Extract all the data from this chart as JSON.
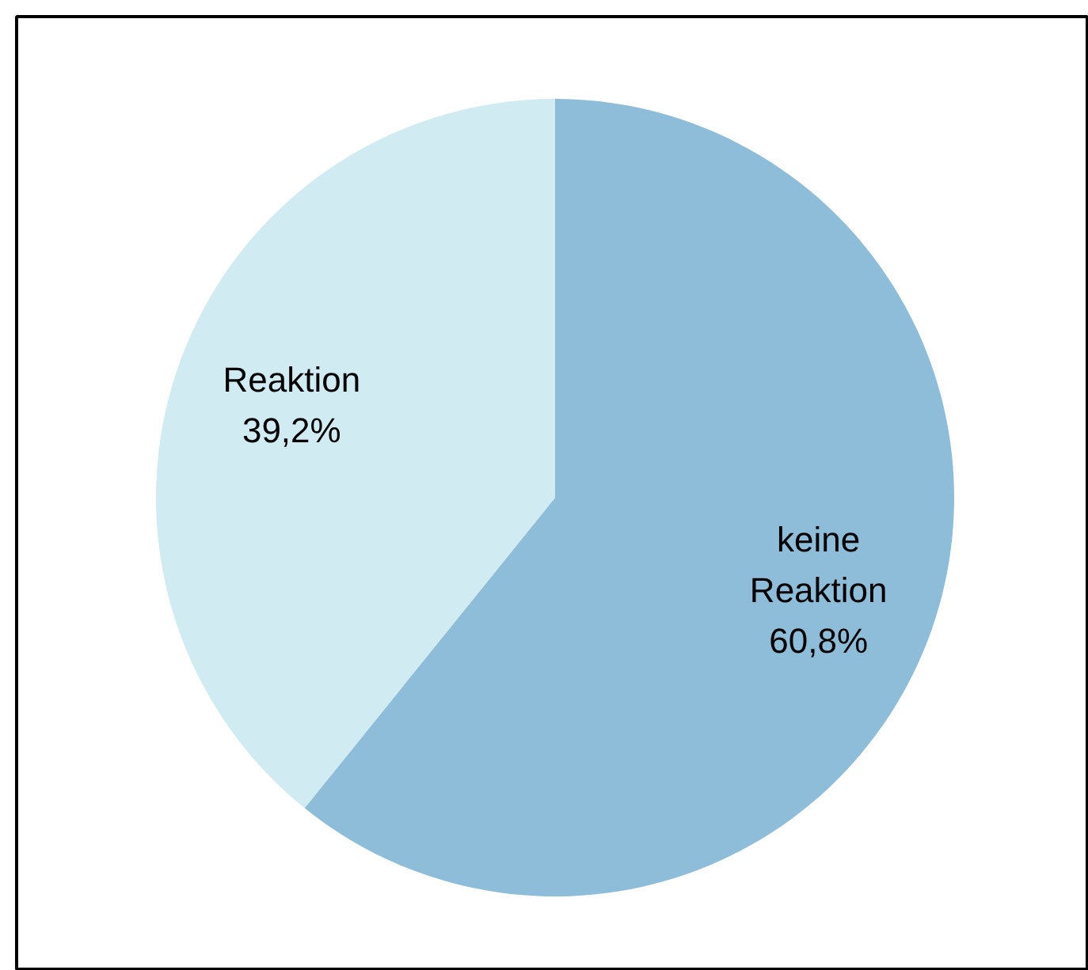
{
  "chart_data": {
    "type": "pie",
    "categories": [
      "keine Reaktion",
      "Reaktion"
    ],
    "values": [
      60.8,
      39.2
    ],
    "colors": [
      "#8dbdd9",
      "#d1ebf2"
    ],
    "value_labels": [
      "60,8%",
      "39,2%"
    ]
  }
}
